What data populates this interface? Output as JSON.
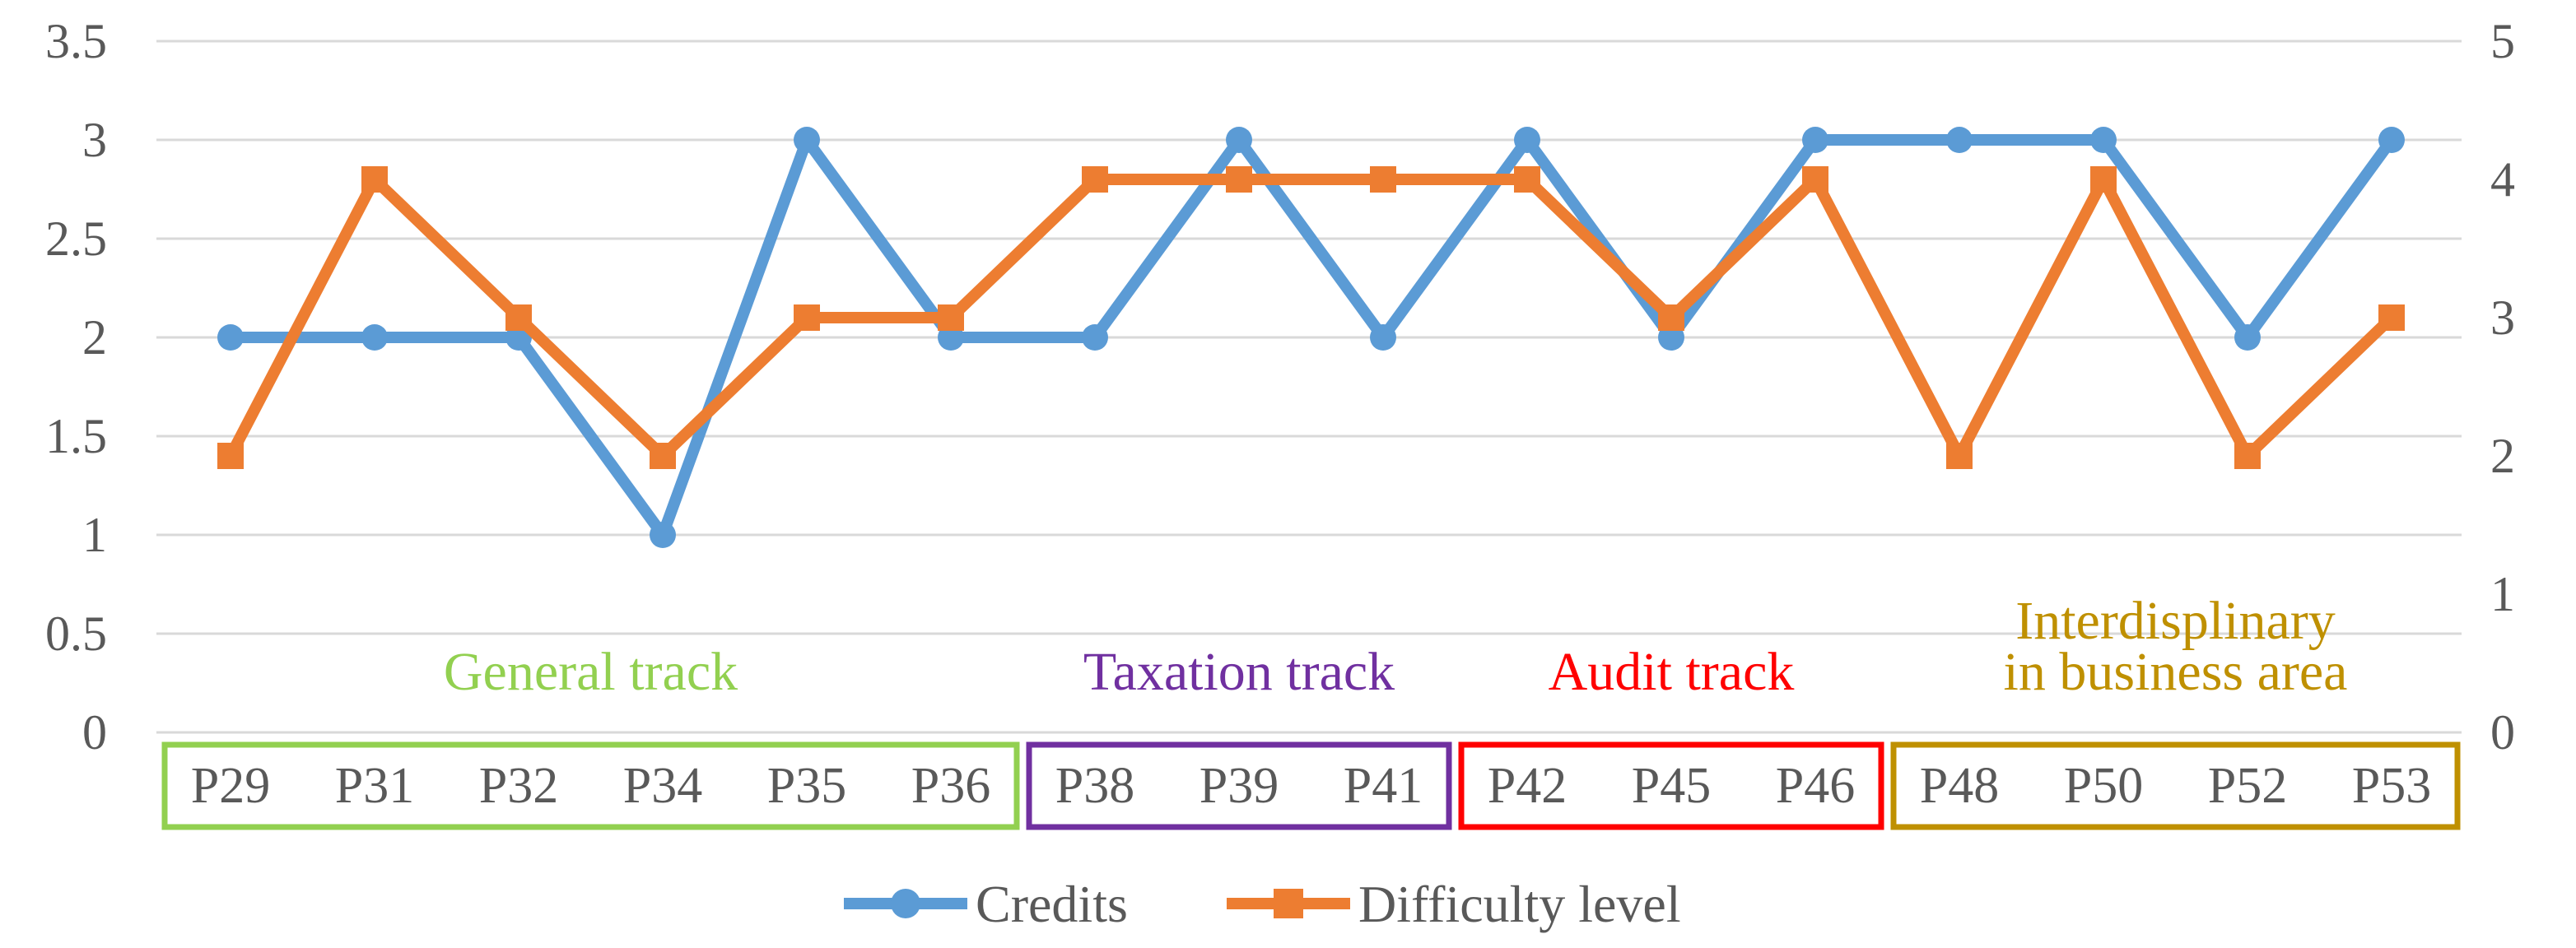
{
  "chart_data": {
    "type": "line",
    "categories": [
      "P29",
      "P31",
      "P32",
      "P34",
      "P35",
      "P36",
      "P38",
      "P39",
      "P41",
      "P42",
      "P45",
      "P46",
      "P48",
      "P50",
      "P52",
      "P53"
    ],
    "series": [
      {
        "name": "Credits",
        "axis": "left",
        "color": "#5b9bd5",
        "marker": "circle",
        "values": [
          2,
          2,
          2,
          1,
          3,
          2,
          2,
          3,
          2,
          3,
          2,
          3,
          3,
          3,
          2,
          3
        ]
      },
      {
        "name": "Difficulty level",
        "axis": "right",
        "color": "#ed7d31",
        "marker": "square",
        "values": [
          2,
          4,
          3,
          2,
          3,
          3,
          4,
          4,
          4,
          4,
          3,
          4,
          2,
          4,
          2,
          3
        ]
      }
    ],
    "y_left": {
      "min": 0,
      "max": 3.5,
      "ticks": [
        "0",
        "0.5",
        "1",
        "1.5",
        "2",
        "2.5",
        "3",
        "3.5"
      ]
    },
    "y_right": {
      "min": 0,
      "max": 5,
      "ticks": [
        "0",
        "1",
        "2",
        "3",
        "4",
        "5"
      ]
    },
    "grid": true,
    "legend": "bottom",
    "groups": [
      {
        "label_lines": [
          "General track"
        ],
        "start": 0,
        "end": 5,
        "color": "#92d050"
      },
      {
        "label_lines": [
          "Taxation track"
        ],
        "start": 6,
        "end": 8,
        "color": "#7030a0"
      },
      {
        "label_lines": [
          "Audit track"
        ],
        "start": 9,
        "end": 11,
        "color": "#ff0000"
      },
      {
        "label_lines": [
          "Interdisplinary",
          "in business area"
        ],
        "start": 12,
        "end": 15,
        "color": "#bf9000"
      }
    ]
  }
}
